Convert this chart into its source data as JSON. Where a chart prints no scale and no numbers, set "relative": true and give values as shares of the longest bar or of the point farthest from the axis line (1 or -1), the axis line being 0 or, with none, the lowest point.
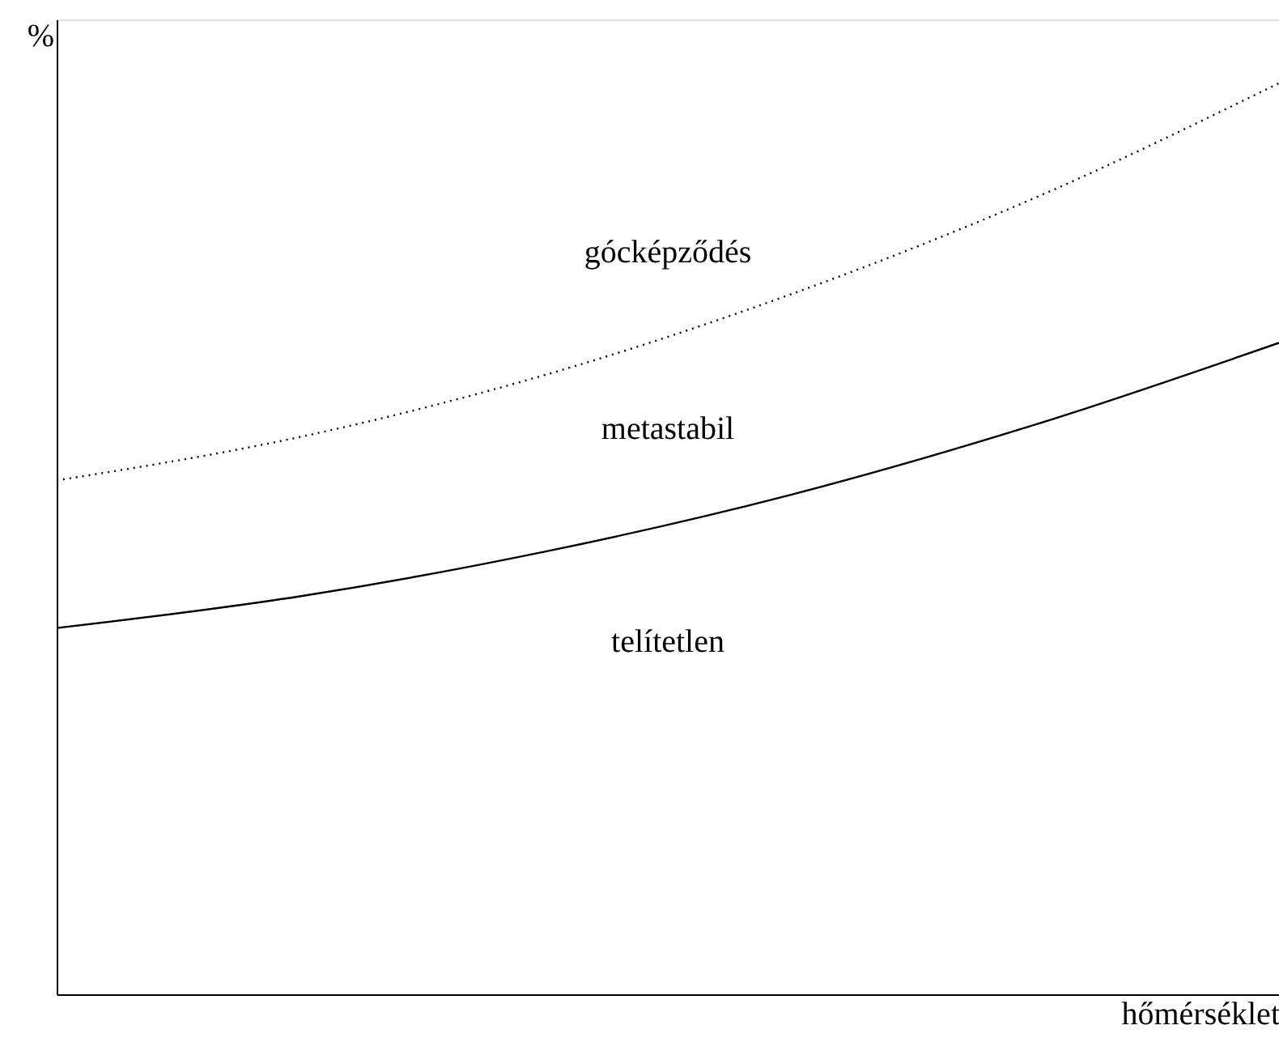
{
  "chart_data": {
    "type": "line",
    "relative": true,
    "xlabel": "hőmérséklet",
    "ylabel": "%",
    "categories": [
      null,
      null,
      null,
      null,
      null,
      null
    ],
    "series": [
      {
        "color": "#000000",
        "line_style": "dotted",
        "values": [
          0.564,
          0.612,
          0.68,
          0.768,
          0.874,
          1
        ]
      },
      {
        "color": "#000000",
        "line_style": "solid",
        "values": [
          0.402,
          0.437,
          0.486,
          0.548,
          0.625,
          0.715
        ]
      }
    ],
    "annotations": [
      "gócképződés",
      "metastabil",
      "telítetlen"
    ],
    "grid": false,
    "marker": "none"
  }
}
